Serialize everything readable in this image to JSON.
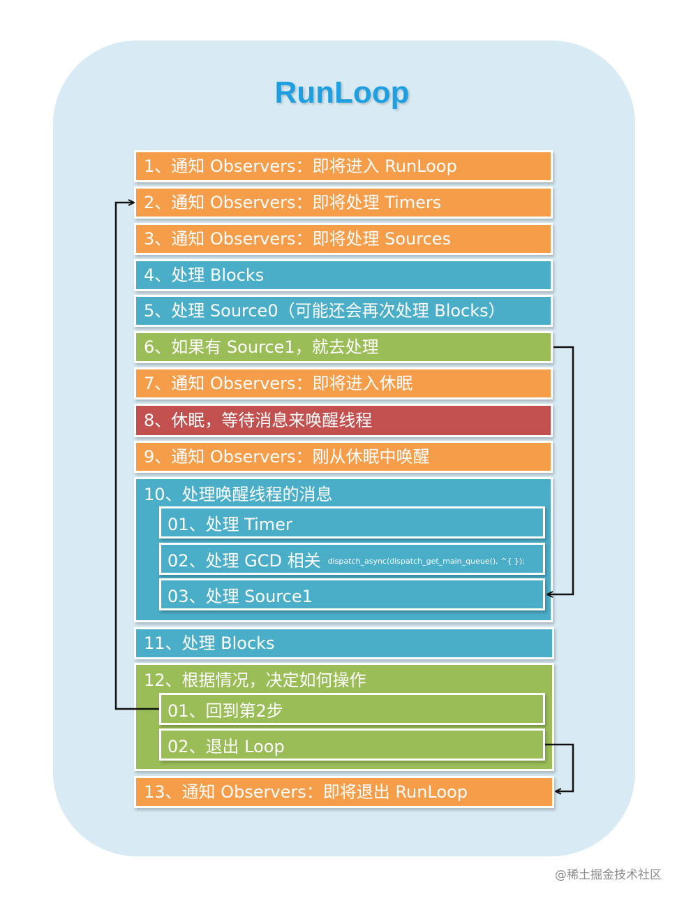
{
  "title": "RunLoop",
  "steps": [
    {
      "label": "1、通知 Observers：即将进入 RunLoop",
      "color": "orange"
    },
    {
      "label": "2、通知 Observers：即将处理 Timers",
      "color": "orange"
    },
    {
      "label": "3、通知 Observers：即将处理 Sources",
      "color": "orange"
    },
    {
      "label": "4、处理 Blocks",
      "color": "blue"
    },
    {
      "label": "5、处理 Source0（可能还会再次处理 Blocks）",
      "color": "blue"
    },
    {
      "label": "6、如果有 Source1，就去处理",
      "color": "green"
    },
    {
      "label": "7、通知 Observers：即将进入休眠",
      "color": "orange"
    },
    {
      "label": "8、休眠，等待消息来唤醒线程",
      "color": "red"
    },
    {
      "label": "9、通知 Observers：刚从休眠中唤醒",
      "color": "orange"
    },
    {
      "label": "10、处理唤醒线程的消息",
      "color": "blue",
      "substeps": [
        {
          "label": "01、处理 Timer",
          "note": ""
        },
        {
          "label": "02、处理 GCD 相关",
          "note": "dispatch_async(dispatch_get_main_queue(), ^{ });"
        },
        {
          "label": "03、处理 Source1",
          "note": ""
        }
      ]
    },
    {
      "label": "11、处理 Blocks",
      "color": "blue"
    },
    {
      "label": "12、根据情况，决定如何操作",
      "color": "green",
      "substeps": [
        {
          "label": "01、回到第2步"
        },
        {
          "label": "02、退出 Loop"
        }
      ]
    },
    {
      "label": "13、通知 Observers：即将退出 RunLoop",
      "color": "orange"
    }
  ],
  "colors": {
    "orange": "#f59d49",
    "blue": "#4aaec8",
    "green": "#9bbd57",
    "red": "#c1504f",
    "title": "#1e9fe0",
    "panel": "#d8eaf3"
  },
  "footer": "@稀土掘金技术社区"
}
